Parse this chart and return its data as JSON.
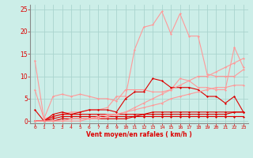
{
  "bg_color": "#cceee8",
  "grid_color": "#aad4ce",
  "x_label": "Vent moyen/en rafales ( km/h )",
  "x_ticks": [
    0,
    1,
    2,
    3,
    4,
    5,
    6,
    7,
    8,
    9,
    10,
    11,
    12,
    13,
    14,
    15,
    16,
    17,
    18,
    19,
    20,
    21,
    22,
    23
  ],
  "ylim": [
    -0.5,
    26
  ],
  "xlim": [
    -0.5,
    23.5
  ],
  "y_ticks": [
    0,
    5,
    10,
    15,
    20,
    25
  ],
  "series": [
    {
      "x": [
        0,
        1,
        2,
        3,
        4,
        5,
        6,
        7,
        8,
        9,
        10,
        11,
        12,
        13,
        14,
        15,
        16,
        17,
        18,
        19,
        20,
        21,
        22,
        23
      ],
      "y": [
        13.5,
        0.5,
        1.0,
        1.5,
        2.0,
        2.0,
        2.5,
        2.5,
        3.0,
        5.5,
        5.5,
        16.0,
        21.0,
        21.5,
        24.5,
        19.5,
        24.0,
        19.0,
        19.0,
        10.5,
        10.0,
        10.0,
        10.0,
        11.5
      ],
      "color": "#ff9999",
      "lw": 0.8,
      "marker": "D",
      "ms": 1.5
    },
    {
      "x": [
        0,
        1,
        2,
        3,
        4,
        5,
        6,
        7,
        8,
        9,
        10,
        11,
        12,
        13,
        14,
        15,
        16,
        17,
        18,
        19,
        20,
        21,
        22,
        23
      ],
      "y": [
        7.0,
        0.5,
        5.5,
        6.0,
        5.5,
        6.0,
        5.5,
        5.0,
        5.0,
        4.5,
        7.0,
        7.0,
        7.0,
        6.5,
        6.5,
        7.0,
        9.5,
        9.0,
        7.5,
        7.5,
        7.0,
        7.0,
        16.5,
        12.0
      ],
      "color": "#ff9999",
      "lw": 0.8,
      "marker": "D",
      "ms": 1.5
    },
    {
      "x": [
        0,
        1,
        2,
        3,
        4,
        5,
        6,
        7,
        8,
        9,
        10,
        11,
        12,
        13,
        14,
        15,
        16,
        17,
        18,
        19,
        20,
        21,
        22,
        23
      ],
      "y": [
        2.5,
        0.0,
        1.5,
        2.0,
        1.5,
        2.0,
        2.5,
        2.5,
        2.5,
        2.0,
        5.0,
        6.5,
        6.5,
        9.5,
        9.0,
        7.5,
        7.5,
        7.5,
        7.0,
        5.5,
        5.5,
        4.0,
        5.5,
        2.0
      ],
      "color": "#dd0000",
      "lw": 0.8,
      "marker": "D",
      "ms": 1.5
    },
    {
      "x": [
        0,
        1,
        2,
        3,
        4,
        5,
        6,
        7,
        8,
        9,
        10,
        11,
        12,
        13,
        14,
        15,
        16,
        17,
        18,
        19,
        20,
        21,
        22,
        23
      ],
      "y": [
        0.0,
        0.0,
        1.0,
        1.5,
        1.5,
        1.5,
        1.5,
        1.5,
        1.5,
        1.5,
        1.5,
        1.5,
        1.5,
        2.0,
        2.0,
        2.0,
        2.0,
        2.0,
        2.0,
        2.0,
        2.0,
        2.0,
        2.0,
        2.0
      ],
      "color": "#dd0000",
      "lw": 0.8,
      "marker": "D",
      "ms": 1.5
    },
    {
      "x": [
        0,
        1,
        2,
        3,
        4,
        5,
        6,
        7,
        8,
        9,
        10,
        11,
        12,
        13,
        14,
        15,
        16,
        17,
        18,
        19,
        20,
        21,
        22,
        23
      ],
      "y": [
        0.0,
        0.0,
        0.5,
        1.0,
        1.0,
        1.0,
        1.0,
        1.0,
        1.0,
        1.0,
        1.0,
        1.0,
        1.0,
        1.0,
        1.0,
        1.0,
        1.0,
        1.0,
        1.0,
        1.0,
        1.0,
        1.0,
        1.0,
        1.0
      ],
      "color": "#dd0000",
      "lw": 0.8,
      "marker": "D",
      "ms": 1.5
    },
    {
      "x": [
        0,
        1,
        2,
        3,
        4,
        5,
        6,
        7,
        8,
        9,
        10,
        11,
        12,
        13,
        14,
        15,
        16,
        17,
        18,
        19,
        20,
        21,
        22,
        23
      ],
      "y": [
        0.0,
        0.0,
        0.0,
        0.5,
        0.5,
        0.5,
        0.5,
        0.5,
        0.5,
        0.5,
        0.5,
        1.0,
        1.5,
        1.5,
        1.5,
        1.5,
        1.5,
        1.5,
        1.5,
        1.5,
        1.5,
        1.5,
        2.0,
        2.0
      ],
      "color": "#dd0000",
      "lw": 0.8,
      "marker": "D",
      "ms": 1.5
    },
    {
      "x": [
        0,
        1,
        2,
        3,
        4,
        5,
        6,
        7,
        8,
        9,
        10,
        11,
        12,
        13,
        14,
        15,
        16,
        17,
        18,
        19,
        20,
        21,
        22,
        23
      ],
      "y": [
        0.0,
        0.0,
        0.0,
        0.0,
        0.5,
        0.5,
        0.5,
        1.0,
        1.5,
        1.5,
        2.0,
        2.5,
        3.0,
        3.5,
        4.0,
        5.0,
        5.5,
        6.0,
        6.5,
        7.0,
        7.5,
        7.5,
        8.0,
        8.0
      ],
      "color": "#ff9999",
      "lw": 0.8,
      "marker": "D",
      "ms": 1.5
    },
    {
      "x": [
        0,
        1,
        2,
        3,
        4,
        5,
        6,
        7,
        8,
        9,
        10,
        11,
        12,
        13,
        14,
        15,
        16,
        17,
        18,
        19,
        20,
        21,
        22,
        23
      ],
      "y": [
        0.0,
        0.0,
        0.0,
        0.0,
        0.0,
        0.0,
        0.5,
        0.5,
        1.0,
        1.5,
        2.0,
        3.0,
        4.0,
        5.0,
        6.0,
        7.0,
        8.0,
        9.0,
        10.0,
        10.0,
        11.0,
        12.0,
        13.0,
        14.0
      ],
      "color": "#ff9999",
      "lw": 0.8,
      "marker": "D",
      "ms": 1.5
    }
  ]
}
